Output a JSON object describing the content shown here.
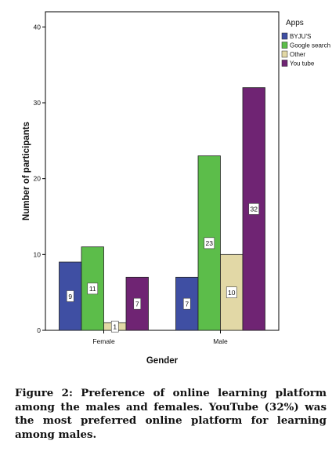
{
  "chart_data": {
    "type": "bar",
    "xlabel": "Gender",
    "ylabel": "Number of participants",
    "categories": [
      "Female",
      "Male"
    ],
    "series": [
      {
        "name": "BYJU'S",
        "color": "#3f4fa3",
        "values": [
          9,
          7
        ]
      },
      {
        "name": "Google search",
        "color": "#5cbd4a",
        "values": [
          11,
          23
        ]
      },
      {
        "name": "Other",
        "color": "#e2d8a6",
        "values": [
          1,
          10
        ]
      },
      {
        "name": "You tube",
        "color": "#6f2473",
        "values": [
          7,
          32
        ]
      }
    ],
    "ylim": [
      0,
      42
    ],
    "yticks": [
      0,
      10,
      20,
      30,
      40
    ],
    "legend_title": "Apps",
    "legend_position": "top-right, outside plot",
    "grid": false,
    "data_labels": true
  },
  "caption": "Figure 2: Preference of online learning platform among the males and females. YouTube (32%) was the most preferred online platform for learning among males."
}
